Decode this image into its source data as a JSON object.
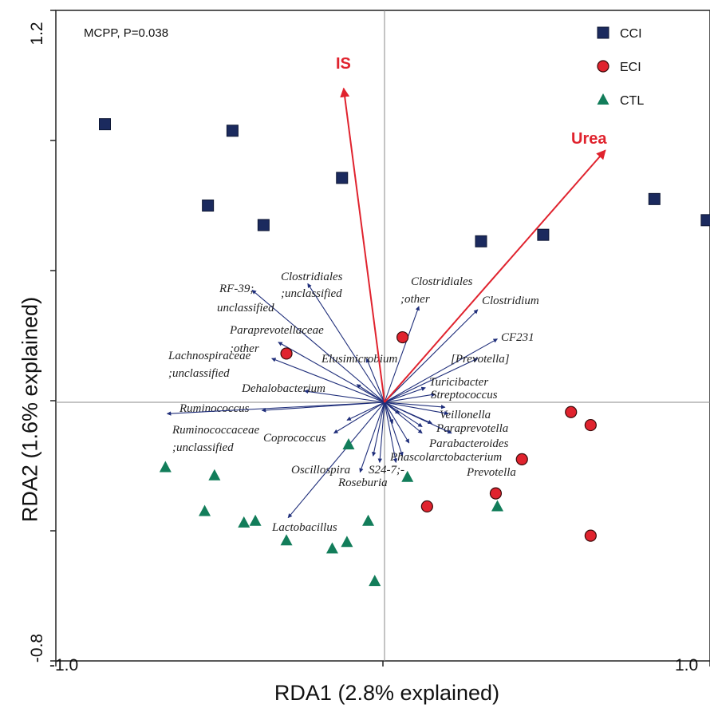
{
  "chart_data": {
    "type": "scatter",
    "xlabel": "RDA1 (2.8% explained)",
    "ylabel": "RDA2 (1.6% explained)",
    "xlim": [
      -1.0,
      1.0
    ],
    "ylim": [
      -0.8,
      1.2
    ],
    "x_tick_labels": [
      "-1.0",
      "1.0"
    ],
    "y_tick_labels": [
      "-0.8",
      "1.2"
    ],
    "annotation": "MCPP, P=0.038",
    "legend_position": "top-right",
    "series": [
      {
        "name": "CCI",
        "marker": "square",
        "color": "#1b2a5e",
        "points": [
          [
            -0.85,
            0.85
          ],
          [
            -0.535,
            0.6
          ],
          [
            -0.46,
            0.83
          ],
          [
            -0.365,
            0.54
          ],
          [
            -0.125,
            0.685
          ],
          [
            0.3,
            0.49
          ],
          [
            0.49,
            0.51
          ],
          [
            0.83,
            0.62
          ],
          [
            0.99,
            0.555
          ]
        ]
      },
      {
        "name": "ECI",
        "marker": "circle",
        "color": "#e0232e",
        "points": [
          [
            -0.295,
            0.145
          ],
          [
            0.06,
            0.195
          ],
          [
            0.135,
            -0.325
          ],
          [
            0.345,
            -0.285
          ],
          [
            0.425,
            -0.18
          ],
          [
            0.575,
            -0.035
          ],
          [
            0.635,
            -0.075
          ],
          [
            0.635,
            -0.415
          ]
        ]
      },
      {
        "name": "CTL",
        "marker": "triangle",
        "color": "#127d5a",
        "points": [
          [
            -0.665,
            -0.205
          ],
          [
            -0.515,
            -0.23
          ],
          [
            -0.545,
            -0.34
          ],
          [
            -0.425,
            -0.375
          ],
          [
            -0.39,
            -0.37
          ],
          [
            -0.295,
            -0.43
          ],
          [
            -0.155,
            -0.455
          ],
          [
            -0.11,
            -0.435
          ],
          [
            -0.105,
            -0.135
          ],
          [
            -0.045,
            -0.37
          ],
          [
            -0.025,
            -0.555
          ],
          [
            0.075,
            -0.235
          ],
          [
            0.35,
            -0.325
          ]
        ]
      }
    ],
    "environmental_vectors": [
      {
        "label": "IS",
        "color": "#e0232e",
        "x": -0.12,
        "y": 0.96
      },
      {
        "label": "Urea",
        "color": "#e0232e",
        "x": 0.68,
        "y": 0.77
      }
    ],
    "species_vectors": [
      {
        "label": "Clostridiales ;unclassified",
        "x": -0.23,
        "y": 0.36
      },
      {
        "label": "RF-39; unclassified",
        "x": -0.4,
        "y": 0.34
      },
      {
        "label": "Paraprevotellaceae ;other",
        "x": -0.32,
        "y": 0.18
      },
      {
        "label": "Lachnospiraceae ;unclassified",
        "x": -0.34,
        "y": 0.13
      },
      {
        "label": "Elusimicrobium",
        "x": -0.05,
        "y": 0.13
      },
      {
        "label": "Dehalobacterium",
        "x": -0.24,
        "y": 0.03
      },
      {
        "label": "Ruminococcus",
        "x": -0.37,
        "y": -0.03
      },
      {
        "label": "Ruminococcaceae ;unclassified",
        "x": -0.66,
        "y": -0.04
      },
      {
        "label": "Coprococcus",
        "x": -0.11,
        "y": -0.06
      },
      {
        "label": "Oscillospira",
        "x": -0.07,
        "y": -0.22
      },
      {
        "label": "S24-7;-",
        "x": -0.01,
        "y": -0.19
      },
      {
        "label": "Roseburia",
        "x": 0.04,
        "y": -0.19
      },
      {
        "label": "Lactobacillus",
        "x": -0.29,
        "y": -0.36
      },
      {
        "label": "Clostridiales ;other",
        "x": 0.11,
        "y": 0.29
      },
      {
        "label": "Clostridium",
        "x": 0.29,
        "y": 0.28
      },
      {
        "label": "CF231",
        "x": 0.35,
        "y": 0.19
      },
      {
        "label": "[Prevotella]",
        "x": 0.29,
        "y": 0.13
      },
      {
        "label": "Turicibacter",
        "x": 0.13,
        "y": 0.04
      },
      {
        "label": "Streptococcus",
        "x": 0.16,
        "y": 0.02
      },
      {
        "label": "Veillonella",
        "x": 0.19,
        "y": -0.02
      },
      {
        "label": "Paraprevotella",
        "x": 0.2,
        "y": -0.04
      },
      {
        "label": "Parabacteroides",
        "x": 0.21,
        "y": -0.1
      },
      {
        "label": "Phascolarctobacterium",
        "x": 0.06,
        "y": -0.17
      },
      {
        "label": "Prevotella",
        "x": 0.12,
        "y": -0.08
      },
      {
        "label": "",
        "x": 0.12,
        "y": -0.1
      },
      {
        "label": "",
        "x": 0.15,
        "y": -0.07
      },
      {
        "label": "",
        "x": 0.08,
        "y": -0.13
      },
      {
        "label": "",
        "x": -0.03,
        "y": -0.17
      },
      {
        "label": "",
        "x": -0.15,
        "y": -0.1
      },
      {
        "label": "",
        "x": 0.05,
        "y": -0.04
      },
      {
        "label": "",
        "x": 0.03,
        "y": -0.07
      },
      {
        "label": "",
        "x": -0.08,
        "y": 0.05
      }
    ]
  }
}
